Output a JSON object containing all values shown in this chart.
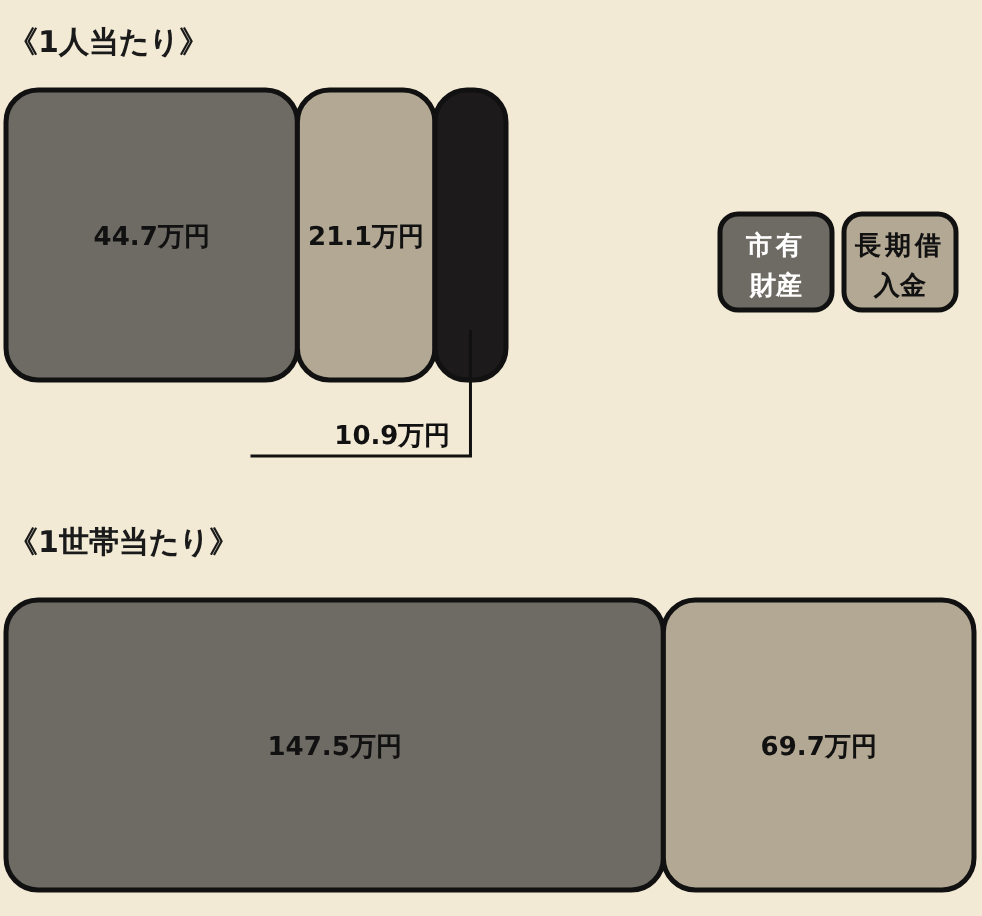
{
  "chart_data": [
    {
      "type": "bar",
      "orientation": "horizontal",
      "stacked": true,
      "title": "《1人当たり》",
      "categories": [
        null
      ],
      "legend": "right",
      "series": [
        {
          "name": "市有財産",
          "color": "#6e6a64",
          "values": [
            44.7
          ],
          "value_labels": [
            "44.7万円"
          ]
        },
        {
          "name": "長期借入金",
          "color": "#b3a893",
          "values": [
            21.1
          ],
          "value_labels": [
            "21.1万円"
          ]
        },
        {
          "color": "#1c1a1a",
          "values": [
            10.9
          ],
          "value_labels": [
            "10.9万円"
          ]
        }
      ]
    },
    {
      "type": "bar",
      "orientation": "horizontal",
      "stacked": true,
      "title": "《1世帯当たり》",
      "categories": [
        null
      ],
      "series": [
        {
          "color": "#6e6a64",
          "values": [
            147.5
          ],
          "value_labels": [
            "147.5万円"
          ]
        },
        {
          "color": "#b3a893",
          "values": [
            69.7
          ],
          "value_labels": [
            "69.7万円"
          ]
        }
      ]
    }
  ]
}
